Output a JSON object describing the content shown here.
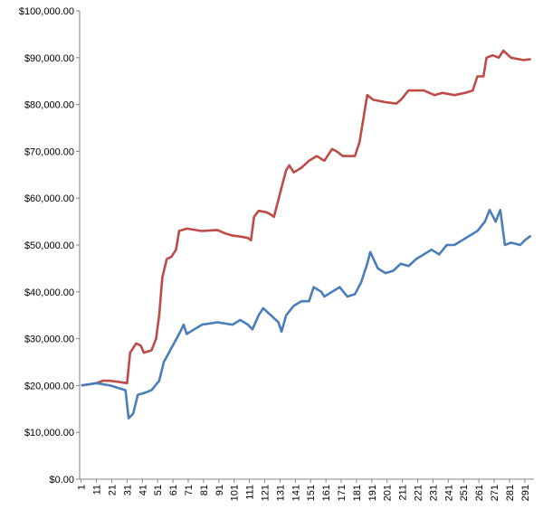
{
  "chart_data": {
    "type": "line",
    "xlim": [
      0,
      297
    ],
    "xticks": [
      1,
      11,
      21,
      31,
      41,
      51,
      61,
      71,
      81,
      91,
      101,
      111,
      121,
      131,
      141,
      151,
      161,
      171,
      181,
      191,
      201,
      211,
      221,
      231,
      241,
      251,
      261,
      271,
      281,
      291
    ],
    "ylim": [
      0,
      100000
    ],
    "yticks": [
      {
        "value": 0,
        "label": "$0.00"
      },
      {
        "value": 10000,
        "label": "$10,000.00"
      },
      {
        "value": 20000,
        "label": "$20,000.00"
      },
      {
        "value": 30000,
        "label": "$30,000.00"
      },
      {
        "value": 40000,
        "label": "$40,000.00"
      },
      {
        "value": 50000,
        "label": "$50,000.00"
      },
      {
        "value": 60000,
        "label": "$60,000.00"
      },
      {
        "value": 70000,
        "label": "$70,000.00"
      },
      {
        "value": 80000,
        "label": "$80,000.00"
      },
      {
        "value": 90000,
        "label": "$90,000.00"
      },
      {
        "value": 100000,
        "label": "$100,000.00"
      }
    ],
    "grid": false,
    "series": [
      {
        "color": "#be4b48",
        "x": [
          1,
          11,
          15,
          20,
          25,
          31,
          33,
          37,
          40,
          42,
          47,
          50,
          52,
          54,
          57,
          60,
          63,
          65,
          70,
          80,
          90,
          95,
          100,
          105,
          110,
          112,
          114,
          117,
          122,
          125,
          127,
          131,
          135,
          137,
          140,
          145,
          150,
          155,
          160,
          165,
          168,
          172,
          180,
          183,
          185,
          188,
          192,
          200,
          207,
          210,
          215,
          225,
          232,
          237,
          245,
          252,
          257,
          260,
          264,
          266,
          270,
          274,
          277,
          282,
          290,
          295
        ],
        "values": [
          20000,
          20500,
          21000,
          21000,
          20800,
          20500,
          27000,
          29000,
          28500,
          27000,
          27500,
          30000,
          35000,
          43000,
          47000,
          47500,
          49000,
          53000,
          53500,
          53000,
          53200,
          52500,
          52000,
          51800,
          51500,
          51000,
          56000,
          57300,
          57000,
          56500,
          56000,
          61000,
          66000,
          67000,
          65500,
          66500,
          68000,
          69000,
          68000,
          70500,
          70000,
          69000,
          69000,
          72000,
          76000,
          82000,
          81000,
          80500,
          80200,
          81000,
          83000,
          83000,
          82000,
          82500,
          82000,
          82500,
          83000,
          86000,
          86000,
          90000,
          90500,
          90000,
          91500,
          90000,
          89500,
          89700
        ]
      },
      {
        "color": "#4a7ebb",
        "x": [
          1,
          11,
          20,
          25,
          30,
          32,
          35,
          38,
          43,
          47,
          52,
          55,
          60,
          65,
          68,
          70,
          75,
          80,
          90,
          100,
          105,
          110,
          113,
          117,
          120,
          125,
          130,
          132,
          135,
          140,
          145,
          150,
          153,
          158,
          160,
          165,
          170,
          175,
          180,
          184,
          188,
          190,
          195,
          200,
          205,
          210,
          215,
          220,
          225,
          230,
          235,
          240,
          245,
          250,
          255,
          260,
          265,
          268,
          272,
          275,
          278,
          282,
          288,
          291,
          295
        ],
        "values": [
          20000,
          20500,
          20000,
          19500,
          19000,
          13000,
          14000,
          18000,
          18500,
          19000,
          21000,
          25000,
          28000,
          31000,
          33000,
          31000,
          32000,
          33000,
          33500,
          33000,
          34000,
          33000,
          32000,
          35000,
          36500,
          35000,
          33500,
          31500,
          35000,
          37000,
          38000,
          38000,
          41000,
          40000,
          39000,
          40000,
          41000,
          39000,
          39500,
          42000,
          46000,
          48500,
          45000,
          44000,
          44500,
          46000,
          45500,
          47000,
          48000,
          49000,
          48000,
          50000,
          50000,
          51000,
          52000,
          53000,
          55000,
          57500,
          55000,
          57500,
          50000,
          50500,
          50000,
          51000,
          52000
        ]
      }
    ]
  }
}
